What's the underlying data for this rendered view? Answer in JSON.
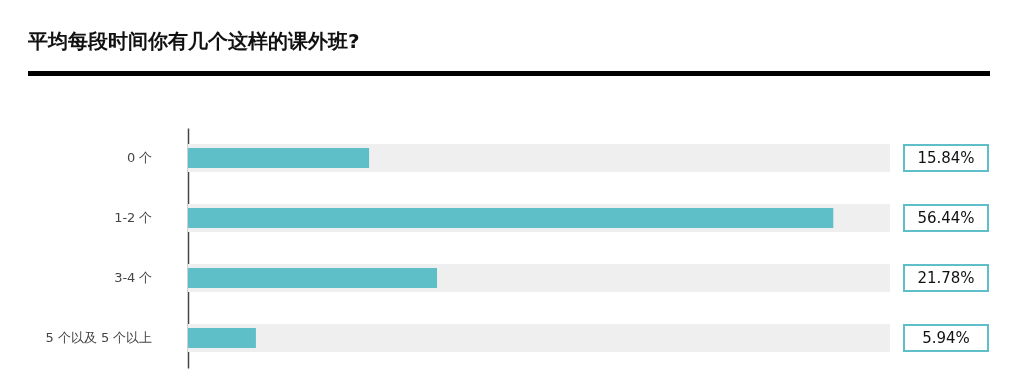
{
  "chart_data": {
    "type": "bar",
    "orientation": "horizontal",
    "title": "平均每段时间你有几个这样的课外班?",
    "categories": [
      "0 个",
      "1-2 个",
      "3-4 个",
      "5 个以及 5 个以上"
    ],
    "values": [
      15.84,
      56.44,
      21.78,
      5.94
    ],
    "value_labels": [
      "15.84%",
      "56.44%",
      "21.78%",
      "5.94%"
    ],
    "color": "#5fbfc9",
    "xlim": [
      0,
      61.4
    ],
    "tick_labels": "y"
  }
}
